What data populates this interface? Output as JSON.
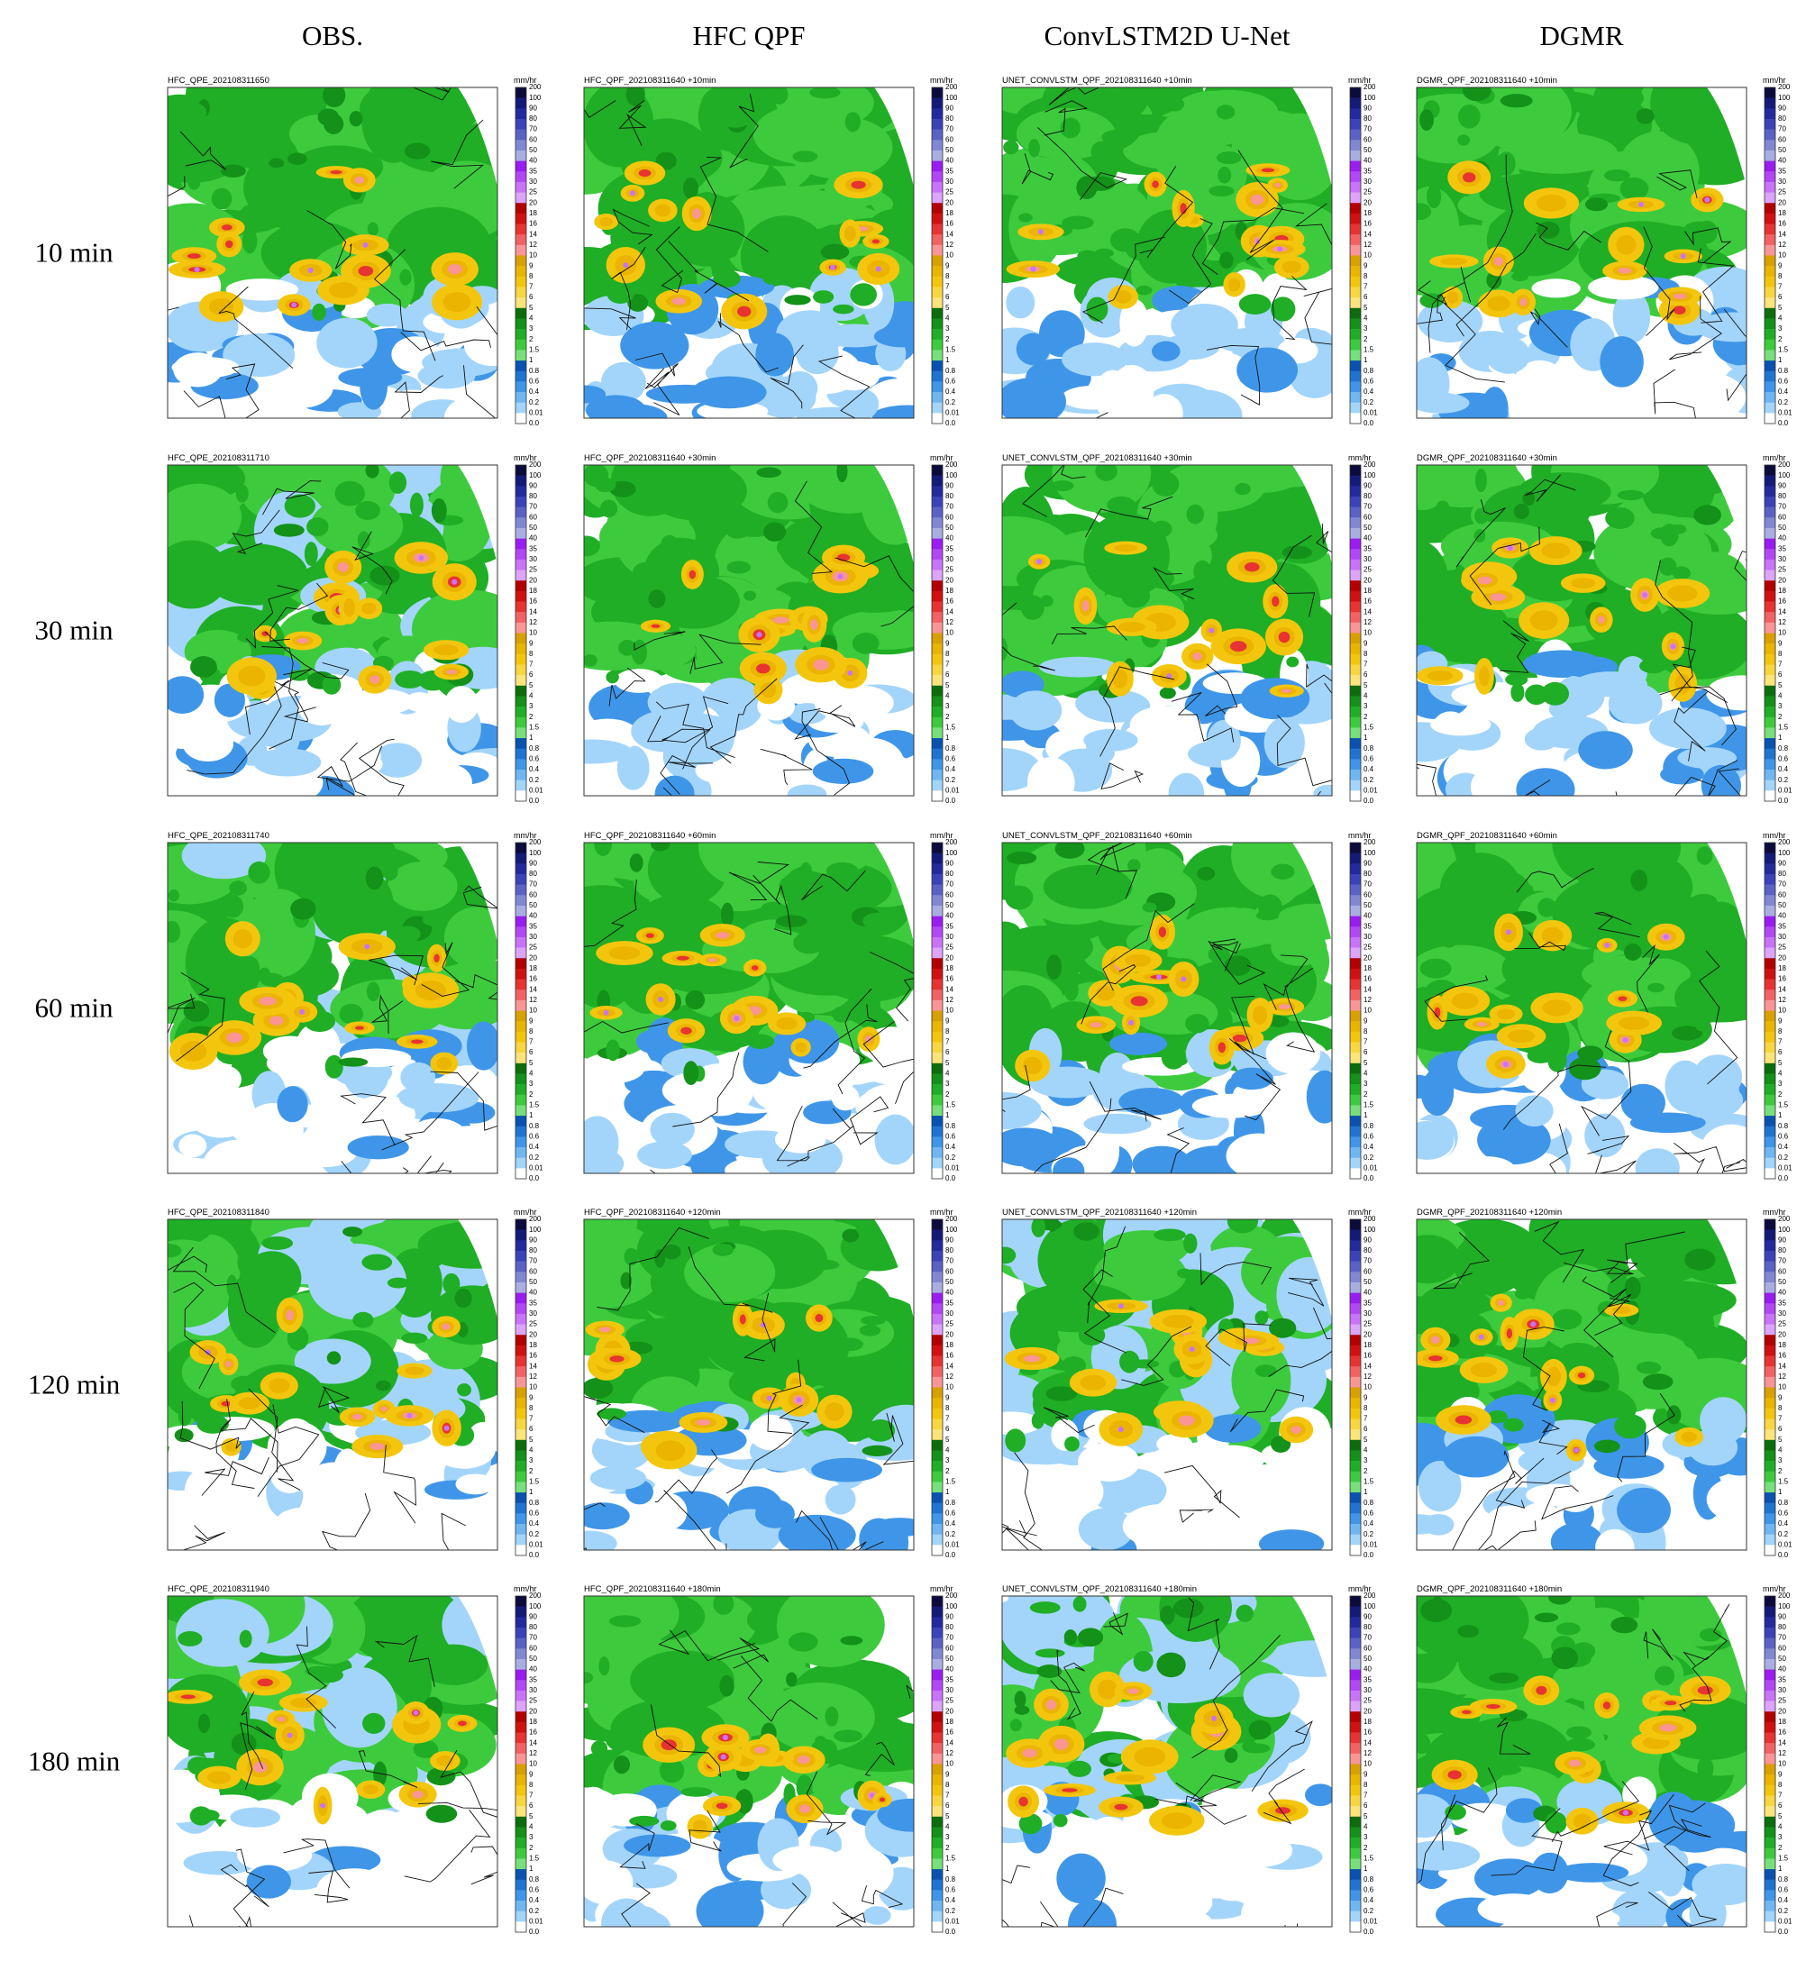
{
  "column_headers": [
    "OBS.",
    "HFC QPF",
    "ConvLSTM2D U-Net",
    "DGMR"
  ],
  "row_labels": [
    "10 min",
    "30 min",
    "60 min",
    "120 min",
    "180 min"
  ],
  "panels": [
    [
      "HFC_QPE_202108311650",
      "HFC_QPF_202108311640 +10min",
      "UNET_CONVLSTM_QPF_202108311640 +10min",
      "DGMR_QPF_202108311640 +10min"
    ],
    [
      "HFC_QPE_202108311710",
      "HFC_QPF_202108311640 +30min",
      "UNET_CONVLSTM_QPF_202108311640 +30min",
      "DGMR_QPF_202108311640 +30min"
    ],
    [
      "HFC_QPE_202108311740",
      "HFC_QPF_202108311640 +60min",
      "UNET_CONVLSTM_QPF_202108311640 +60min",
      "DGMR_QPF_202108311640 +60min"
    ],
    [
      "HFC_QPE_202108311840",
      "HFC_QPF_202108311640 +120min",
      "UNET_CONVLSTM_QPF_202108311640 +120min",
      "DGMR_QPF_202108311640 +120min"
    ],
    [
      "HFC_QPE_202108311940",
      "HFC_QPF_202108311640 +180min",
      "UNET_CONVLSTM_QPF_202108311640 +180min",
      "DGMR_QPF_202108311640 +180min"
    ]
  ],
  "colorbar": {
    "unit": "mm/hr",
    "levels": [
      "200",
      "100",
      "90",
      "80",
      "70",
      "60",
      "50",
      "40",
      "35",
      "30",
      "25",
      "20",
      "18",
      "16",
      "14",
      "12",
      "10",
      "9",
      "8",
      "7",
      "6",
      "5",
      "4",
      "3",
      "2",
      "1.5",
      "1",
      "0.8",
      "0.6",
      "0.4",
      "0.2",
      "0.01",
      "0.0"
    ],
    "colors": [
      "#0b0b3d",
      "#141a78",
      "#222a9e",
      "#3a43b8",
      "#5a62c6",
      "#8088d4",
      "#a8aee2",
      "#9a1cf0",
      "#b347f5",
      "#c973f8",
      "#dea3fb",
      "#b30000",
      "#d11010",
      "#e83333",
      "#f26262",
      "#f99595",
      "#d9a000",
      "#eab400",
      "#f3c60d",
      "#f8d640",
      "#fbe47a",
      "#0b6e0b",
      "#139118",
      "#1fae25",
      "#3dcb3d",
      "#76e07a",
      "#0a52b0",
      "#1f74d2",
      "#3f96e8",
      "#6eb7f3",
      "#a3d5fb",
      "#ffffff"
    ]
  }
}
